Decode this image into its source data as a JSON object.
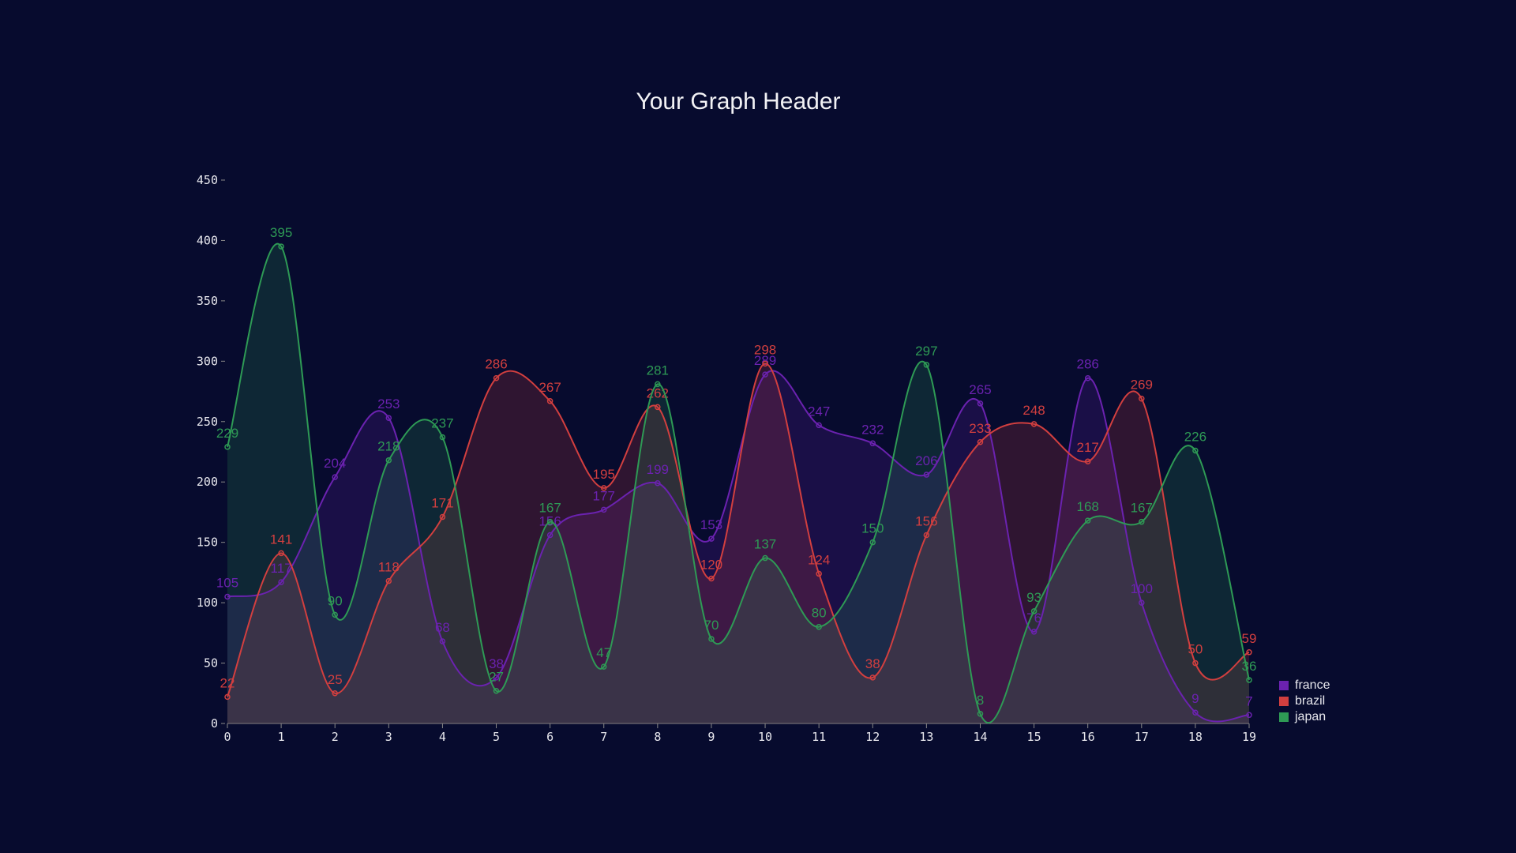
{
  "chart_data": {
    "type": "area",
    "title": "Your Graph Header",
    "xlabel": "",
    "ylabel": "",
    "x": [
      0,
      1,
      2,
      3,
      4,
      5,
      6,
      7,
      8,
      9,
      10,
      11,
      12,
      13,
      14,
      15,
      16,
      17,
      18,
      19
    ],
    "ylim": [
      0,
      450
    ],
    "yticks": [
      0,
      50,
      100,
      150,
      200,
      250,
      300,
      350,
      400,
      450
    ],
    "legend_position": "bottom-right",
    "curve": "smooth",
    "series": [
      {
        "name": "france",
        "color": "#6b22b0",
        "values": [
          105,
          117,
          204,
          253,
          68,
          38,
          156,
          177,
          199,
          153,
          289,
          247,
          232,
          206,
          265,
          76,
          286,
          100,
          9,
          7
        ]
      },
      {
        "name": "brazil",
        "color": "#d23f3f",
        "values": [
          22,
          141,
          25,
          118,
          171,
          286,
          267,
          195,
          262,
          120,
          298,
          124,
          38,
          156,
          233,
          248,
          217,
          269,
          50,
          59
        ]
      },
      {
        "name": "japan",
        "color": "#2e9a55",
        "values": [
          229,
          395,
          90,
          218,
          237,
          27,
          167,
          47,
          281,
          70,
          137,
          80,
          150,
          297,
          8,
          93,
          168,
          167,
          226,
          36
        ]
      }
    ]
  }
}
